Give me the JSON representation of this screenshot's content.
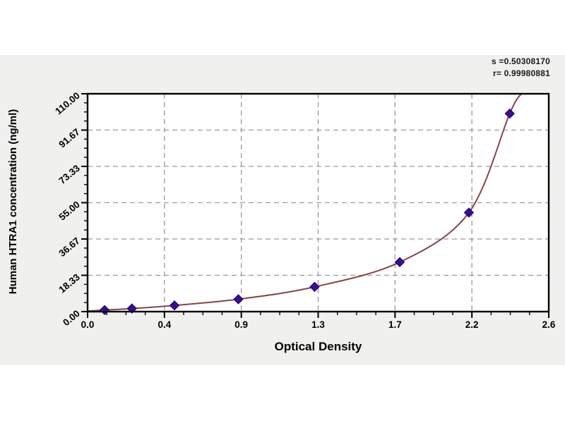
{
  "page": {
    "background": "#ffffff",
    "band_color": "#f0f0ef"
  },
  "annotation": {
    "line1": "s =0.50308170",
    "line2": "r= 0.99980881"
  },
  "chart_data": {
    "type": "scatter",
    "title": "",
    "xlabel": "Optical Density",
    "ylabel": "Human HTRA1 concentration (ng/ml)",
    "x": [
      0.096,
      0.25,
      0.49,
      0.85,
      1.28,
      1.76,
      2.15,
      2.38
    ],
    "y": [
      0.78,
      1.56,
      3.13,
      6.25,
      12.5,
      25,
      50,
      100
    ],
    "curve_extension_start": {
      "x": 0.0,
      "y": 0.3
    },
    "curve_extension_end": {
      "x": 2.445,
      "y": 110
    },
    "xlim": [
      0,
      2.6
    ],
    "ylim": [
      0,
      110
    ],
    "x_tick_labels": [
      "0.0",
      "0.4",
      "0.9",
      "1.3",
      "1.7",
      "2.2",
      "2.6"
    ],
    "y_tick_labels": [
      "0.00",
      "18.33",
      "36.67",
      "55.00",
      "73.33",
      "91.67",
      "110.00"
    ],
    "minor_ticks_per_interval": 3,
    "grid": "dashed-major-both-axes",
    "legend": null,
    "colors": {
      "curve": "#8b4545",
      "marker_fill": "#3a0b9e",
      "marker_edge": "#1e0560",
      "grid": "#9a9a9a",
      "frame": "#000000",
      "tick_text": "#000000"
    }
  }
}
